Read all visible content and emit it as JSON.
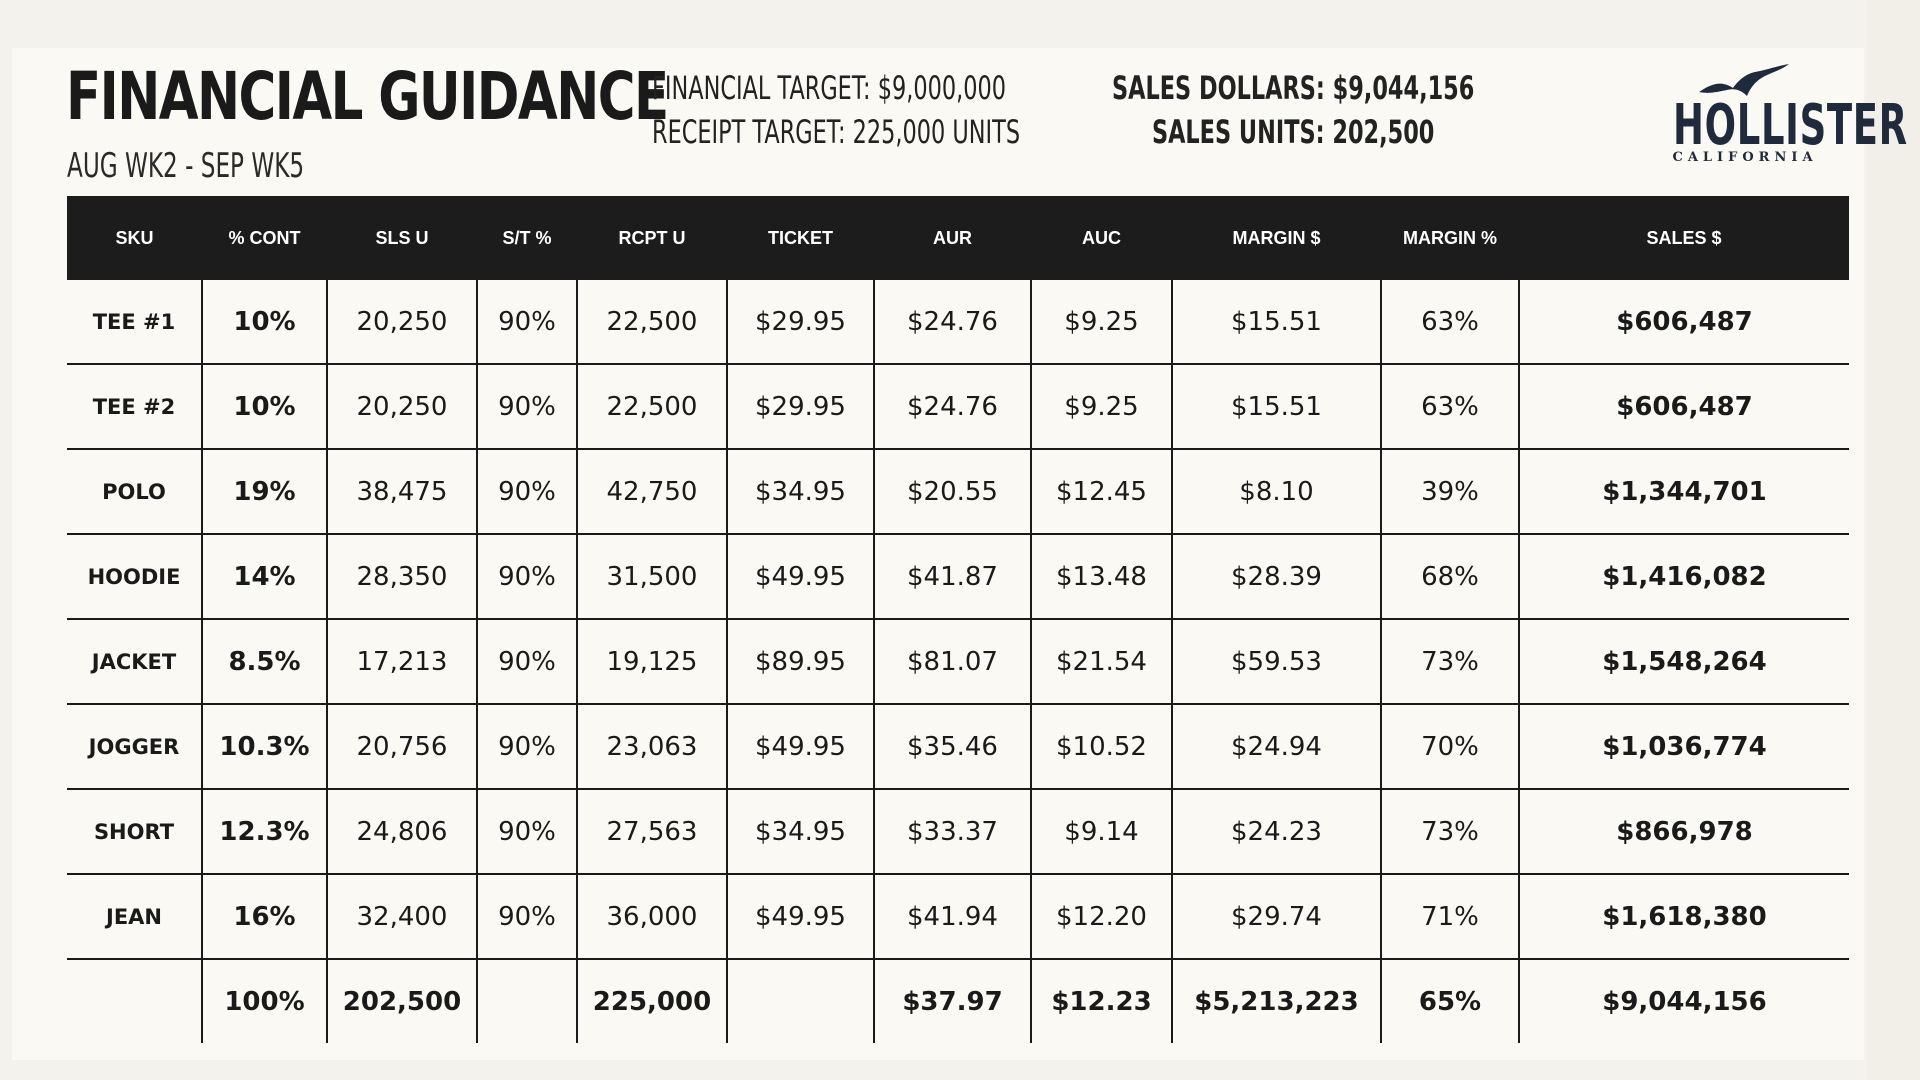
{
  "header": {
    "title": "FINANCIAL GUIDANCE",
    "subtitle": "AUG WK2 - SEP WK5",
    "financial_target": "FINANCIAL TARGET: $9,000,000",
    "receipt_target": "RECEIPT TARGET: 225,000 UNITS",
    "sales_dollars": "SALES DOLLARS: $9,044,156",
    "sales_units": "SALES UNITS:  202,500"
  },
  "logo": {
    "icon": "seagull-icon",
    "word": "HOLLISTER",
    "sub": "CALIFORNIA",
    "color": "#1f2a3c"
  },
  "table": {
    "columns": [
      "SKU",
      "% CONT",
      "SLS U",
      "S/T %",
      "RCPT U",
      "TICKET",
      "AUR",
      "AUC",
      "MARGIN $",
      "MARGIN %",
      "SALES $"
    ],
    "rows": [
      {
        "sku": "TEE #1",
        "cont": "10%",
        "sls_u": "20,250",
        "st": "90%",
        "rcpt_u": "22,500",
        "ticket": "$29.95",
        "aur": "$24.76",
        "auc": "$9.25",
        "margin_d": "$15.51",
        "margin_p": "63%",
        "sales": "$606,487"
      },
      {
        "sku": "TEE #2",
        "cont": "10%",
        "sls_u": "20,250",
        "st": "90%",
        "rcpt_u": "22,500",
        "ticket": "$29.95",
        "aur": "$24.76",
        "auc": "$9.25",
        "margin_d": "$15.51",
        "margin_p": "63%",
        "sales": "$606,487"
      },
      {
        "sku": "POLO",
        "cont": "19%",
        "sls_u": "38,475",
        "st": "90%",
        "rcpt_u": "42,750",
        "ticket": "$34.95",
        "aur": "$20.55",
        "auc": "$12.45",
        "margin_d": "$8.10",
        "margin_p": "39%",
        "sales": "$1,344,701"
      },
      {
        "sku": "HOODIE",
        "cont": "14%",
        "sls_u": "28,350",
        "st": "90%",
        "rcpt_u": "31,500",
        "ticket": "$49.95",
        "aur": "$41.87",
        "auc": "$13.48",
        "margin_d": "$28.39",
        "margin_p": "68%",
        "sales": "$1,416,082"
      },
      {
        "sku": "JACKET",
        "cont": "8.5%",
        "sls_u": "17,213",
        "st": "90%",
        "rcpt_u": "19,125",
        "ticket": "$89.95",
        "aur": "$81.07",
        "auc": "$21.54",
        "margin_d": "$59.53",
        "margin_p": "73%",
        "sales": "$1,548,264"
      },
      {
        "sku": "JOGGER",
        "cont": "10.3%",
        "sls_u": "20,756",
        "st": "90%",
        "rcpt_u": "23,063",
        "ticket": "$49.95",
        "aur": "$35.46",
        "auc": "$10.52",
        "margin_d": "$24.94",
        "margin_p": "70%",
        "sales": "$1,036,774"
      },
      {
        "sku": "SHORT",
        "cont": "12.3%",
        "sls_u": "24,806",
        "st": "90%",
        "rcpt_u": "27,563",
        "ticket": "$34.95",
        "aur": "$33.37",
        "auc": "$9.14",
        "margin_d": "$24.23",
        "margin_p": "73%",
        "sales": "$866,978"
      },
      {
        "sku": "JEAN",
        "cont": "16%",
        "sls_u": "32,400",
        "st": "90%",
        "rcpt_u": "36,000",
        "ticket": "$49.95",
        "aur": "$41.94",
        "auc": "$12.20",
        "margin_d": "$29.74",
        "margin_p": "71%",
        "sales": "$1,618,380"
      }
    ],
    "total": {
      "sku": "",
      "cont": "100%",
      "sls_u": "202,500",
      "st": "",
      "rcpt_u": "225,000",
      "ticket": "",
      "aur": "$37.97",
      "auc": "$12.23",
      "margin_d": "$5,213,223",
      "margin_p": "65%",
      "sales": "$9,044,156"
    }
  }
}
